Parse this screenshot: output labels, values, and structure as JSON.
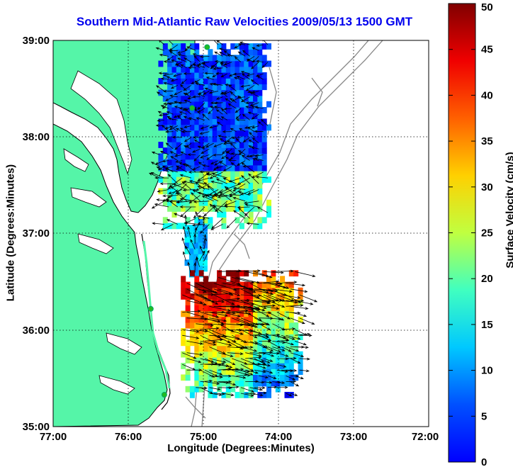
{
  "title": "Southern Mid-Atlantic Raw Velocities 2009/05/13 1500 GMT",
  "x_axis": {
    "label": "Longitude (Degrees:Minutes)",
    "ticks": [
      "77:00",
      "76:00",
      "75:00",
      "74:00",
      "73:00",
      "72:00"
    ]
  },
  "y_axis": {
    "label": "Latitude (Degrees:Minutes)",
    "ticks": [
      "39:00",
      "38:00",
      "37:00",
      "36:00",
      "35:00"
    ]
  },
  "colorbar": {
    "label": "Surface Velocity (cm/s)",
    "min": 0,
    "max": 50,
    "ticks": [
      "0",
      "5",
      "10",
      "15",
      "20",
      "25",
      "30",
      "35",
      "40",
      "45",
      "50"
    ],
    "colormap": "jet"
  },
  "colors": {
    "land": "#55f5a8",
    "title": "#0000ee",
    "bathymetry": "#888888",
    "station_marker": "#22bb22"
  },
  "map": {
    "lon_range": [
      -77,
      -72
    ],
    "lat_range": [
      35,
      39
    ],
    "grid": true,
    "stations": [
      {
        "lon": -74.95,
        "lat": 38.93
      },
      {
        "lon": -75.15,
        "lat": 38.3
      },
      {
        "lon": -75.7,
        "lat": 36.22
      },
      {
        "lon": -75.52,
        "lat": 35.33
      }
    ],
    "velocity_regions": [
      {
        "name": "north",
        "lon_range": [
          -75.6,
          -74.1
        ],
        "lat_range": [
          37.05,
          38.95
        ],
        "speed_cm_s": [
          0,
          30
        ]
      },
      {
        "name": "middle",
        "lon_range": [
          -75.25,
          -74.95
        ],
        "lat_range": [
          36.55,
          37.1
        ],
        "speed_cm_s": [
          10,
          22
        ]
      },
      {
        "name": "south",
        "lon_range": [
          -75.3,
          -73.7
        ],
        "lat_range": [
          35.3,
          36.6
        ],
        "speed_cm_s": [
          5,
          50
        ]
      }
    ]
  }
}
